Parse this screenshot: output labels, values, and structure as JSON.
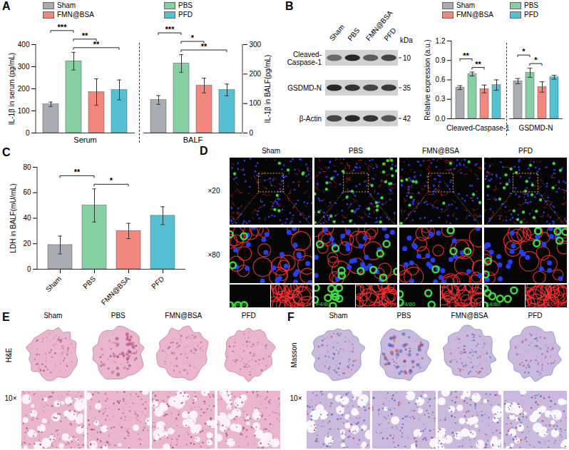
{
  "chart_data": [
    {
      "panel": "A",
      "type": "bar",
      "title": "Serum",
      "categories": [
        "Sham",
        "PBS",
        "FMN@BSA",
        "PFD"
      ],
      "colors": [
        "#a9adb3",
        "#86cfa3",
        "#f2877d",
        "#55c0d2"
      ],
      "values": [
        130,
        325,
        185,
        195
      ],
      "errors": [
        10,
        40,
        60,
        45
      ],
      "ylabel": "IL-1β in serum (pg/mL)",
      "ylim": [
        0,
        400
      ],
      "yticks": [
        0,
        100,
        200,
        300,
        400
      ],
      "legend": "top",
      "significance": [
        {
          "pair": [
            "PBS",
            "PFD"
          ],
          "label": "**"
        },
        {
          "pair": [
            "PBS",
            "FMN@BSA"
          ],
          "label": "**"
        },
        {
          "pair": [
            "Sham",
            "PBS"
          ],
          "label": "***"
        }
      ]
    },
    {
      "panel": "A",
      "type": "bar",
      "title": "BALF",
      "categories": [
        "Sham",
        "PBS",
        "FMN@BSA",
        "PFD"
      ],
      "colors": [
        "#a9adb3",
        "#86cfa3",
        "#f2877d",
        "#55c0d2"
      ],
      "values": [
        112,
        236,
        161,
        146
      ],
      "errors": [
        15,
        30,
        25,
        20
      ],
      "y2label": "IL-1β in BALF(pg/mL)",
      "y2lim": [
        0,
        300
      ],
      "y2ticks": [
        0,
        100,
        200,
        300
      ],
      "significance": [
        {
          "pair": [
            "PBS",
            "PFD"
          ],
          "label": "**"
        },
        {
          "pair": [
            "PBS",
            "FMN@BSA"
          ],
          "label": "*"
        },
        {
          "pair": [
            "Sham",
            "PBS"
          ],
          "label": "***"
        }
      ]
    },
    {
      "panel": "B",
      "type": "bar",
      "categories": [
        "Cleaved-Caspase-1",
        "GSDMD-N"
      ],
      "series": [
        {
          "name": "Sham",
          "color": "#a9adb3",
          "values": [
            0.48,
            0.58
          ],
          "errors": [
            0.03,
            0.04
          ]
        },
        {
          "name": "PBS",
          "color": "#86cfa3",
          "values": [
            0.69,
            0.71
          ],
          "errors": [
            0.03,
            0.07
          ]
        },
        {
          "name": "FMN@BSA",
          "color": "#f2877d",
          "values": [
            0.46,
            0.49
          ],
          "errors": [
            0.06,
            0.08
          ]
        },
        {
          "name": "PFD",
          "color": "#55c0d2",
          "values": [
            0.52,
            0.64
          ],
          "errors": [
            0.08,
            0.03
          ]
        }
      ],
      "ylabel": "Relative expression (a.u.)",
      "ylim": [
        0,
        1.2
      ],
      "yticks": [
        {
          "value": 0,
          "label": "0.0"
        },
        0.3,
        0.6,
        0.9,
        1.2
      ],
      "legend": "top",
      "significance": [
        {
          "category": "Cleaved-Caspase-1",
          "pair": [
            "PBS",
            "FMN@BSA"
          ],
          "label": "**"
        },
        {
          "category": "Cleaved-Caspase-1",
          "pair": [
            "Sham",
            "PBS"
          ],
          "label": "**"
        },
        {
          "category": "GSDMD-N",
          "pair": [
            "PBS",
            "FMN@BSA"
          ],
          "label": "*"
        },
        {
          "category": "GSDMD-N",
          "pair": [
            "Sham",
            "PBS"
          ],
          "label": "*"
        }
      ]
    },
    {
      "panel": "C",
      "type": "bar",
      "categories": [
        "Sham",
        "PBS",
        "FMN@BSA",
        "PFD"
      ],
      "colors": [
        "#a9adb3",
        "#86cfa3",
        "#f2877d",
        "#55c0d2"
      ],
      "values": [
        19,
        50,
        30,
        42
      ],
      "errors": [
        7,
        13,
        6,
        7
      ],
      "ylabel": "LDH in BALF(mU/mL)",
      "ylim": [
        0,
        80
      ],
      "yticks": [
        0,
        20,
        40,
        60,
        80
      ],
      "significance": [
        {
          "pair": [
            "PBS",
            "FMN@BSA"
          ],
          "label": "*"
        },
        {
          "pair": [
            "Sham",
            "PBS"
          ],
          "label": "**"
        }
      ]
    }
  ],
  "blot": {
    "lanes": [
      "Sham",
      "PBS",
      "FMN@BSA",
      "PFD"
    ],
    "unit": "kDa",
    "rows": [
      {
        "label": "Cleaved-Caspase-1",
        "kda": 10
      },
      {
        "label": "GSDMD-N",
        "kda": 35
      },
      {
        "label": "β-Actin",
        "kda": 42
      }
    ]
  },
  "immunofluorescence": {
    "panel": "D",
    "columns": [
      "Sham",
      "PBS",
      "FMN@BSA",
      "PFD"
    ],
    "rows": [
      "×20",
      "×80"
    ],
    "channels": [
      {
        "name": "F4/80",
        "color": "#3fdc3f"
      },
      {
        "name": "GSDMD-N",
        "color": "#ff3535"
      }
    ]
  },
  "histology": [
    {
      "panel": "E",
      "stain": "H&E",
      "columns": [
        "Sham",
        "PBS",
        "FMN@BSA",
        "PFD"
      ],
      "magnification": "10×"
    },
    {
      "panel": "F",
      "stain": "Masson",
      "columns": [
        "Sham",
        "PBS",
        "FMN@BSA",
        "PFD"
      ],
      "magnification": "10×"
    }
  ]
}
